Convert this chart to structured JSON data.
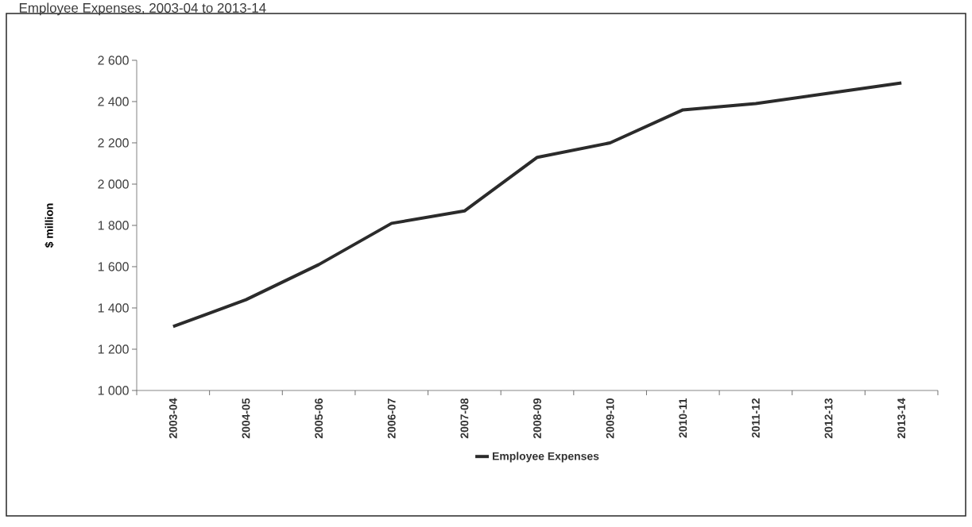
{
  "chart_data": {
    "type": "line",
    "title": "Employee Expenses, 2003-04 to 2013-14",
    "ylabel": "$ million",
    "categories": [
      "2003-04",
      "2004-05",
      "2005-06",
      "2006-07",
      "2007-08",
      "2008-09",
      "2009-10",
      "2010-11",
      "2011-12",
      "2012-13",
      "2013-14"
    ],
    "series": [
      {
        "name": "Employee Expenses",
        "color": "#2b2b2b",
        "values": [
          1310,
          1440,
          1610,
          1810,
          1870,
          2130,
          2200,
          2360,
          2390,
          2440,
          2490
        ]
      }
    ],
    "ylim": [
      1000,
      2600
    ],
    "yticks": [
      {
        "value": 1000,
        "label": "1 000"
      },
      {
        "value": 1200,
        "label": "1 200"
      },
      {
        "value": 1400,
        "label": "1 400"
      },
      {
        "value": 1600,
        "label": "1 600"
      },
      {
        "value": 1800,
        "label": "1 800"
      },
      {
        "value": 2000,
        "label": "2 000"
      },
      {
        "value": 2200,
        "label": "2 200"
      },
      {
        "value": 2400,
        "label": "2 400"
      },
      {
        "value": 2600,
        "label": "2 600"
      }
    ],
    "legend": "bottom",
    "line_style": "solid"
  }
}
